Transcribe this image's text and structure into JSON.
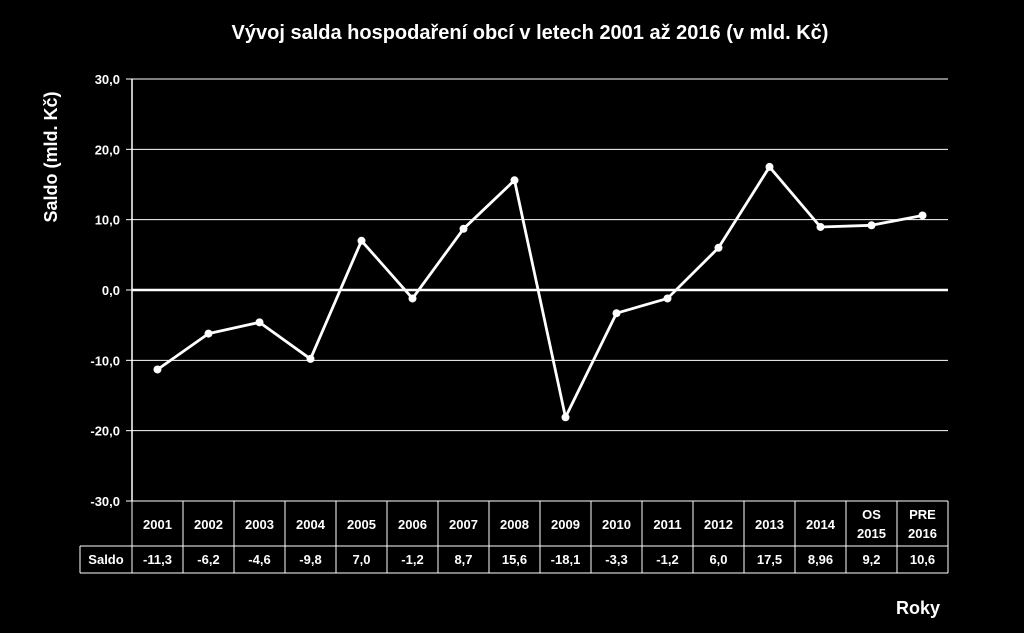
{
  "chart_data": {
    "type": "line",
    "title": "Vývoj salda hospodaření obcí v letech 2001 až 2016 (v mld. Kč)",
    "ylabel": "Saldo (mld. Kč)",
    "xlabel": "Roky",
    "ylim": [
      -30,
      30
    ],
    "yticks": [
      "30,0",
      "20,0",
      "10,0",
      "0,0",
      "-10,0",
      "-20,0",
      "-30,0"
    ],
    "ytick_values": [
      30,
      20,
      10,
      0,
      -10,
      -20,
      -30
    ],
    "grid": true,
    "categories": [
      [
        "2001"
      ],
      [
        "2002"
      ],
      [
        "2003"
      ],
      [
        "2004"
      ],
      [
        "2005"
      ],
      [
        "2006"
      ],
      [
        "2007"
      ],
      [
        "2008"
      ],
      [
        "2009"
      ],
      [
        "2010"
      ],
      [
        "2011"
      ],
      [
        "2012"
      ],
      [
        "2013"
      ],
      [
        "2014"
      ],
      [
        "OS",
        "2015"
      ],
      [
        "PRE",
        "2016"
      ]
    ],
    "series": [
      {
        "name": "Saldo",
        "values": [
          -11.3,
          -6.2,
          -4.6,
          -9.8,
          7.0,
          -1.2,
          8.7,
          15.6,
          -18.1,
          -3.3,
          -1.2,
          6.0,
          17.5,
          8.96,
          9.2,
          10.6
        ],
        "labels": [
          "-11,3",
          "-6,2",
          "-4,6",
          "-9,8",
          "7,0",
          "-1,2",
          "8,7",
          "15,6",
          "-18,1",
          "-3,3",
          "-1,2",
          "6,0",
          "17,5",
          "8,96",
          "9,2",
          "10,6"
        ]
      }
    ],
    "line_color": "#ffffff",
    "background": "#000000"
  }
}
